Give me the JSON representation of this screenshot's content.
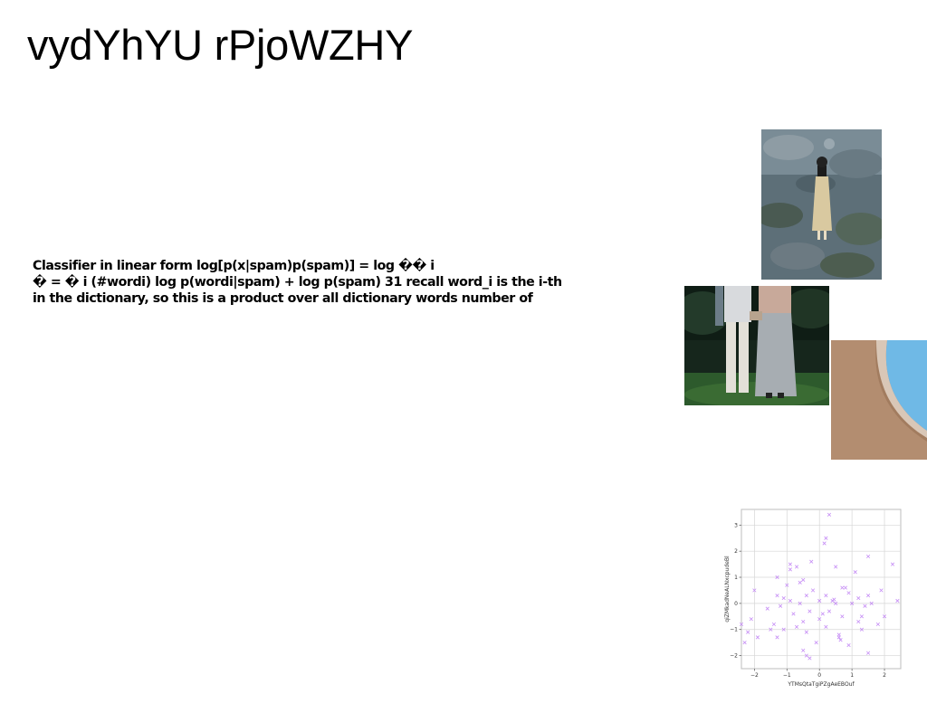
{
  "page": {
    "title": "vydYhYU rPjoWZHY",
    "body_lines": [
      "Classifier in linear form log[p(x|spam)p(spam)] = log �� i",
      "� = � i (#wordi) log p(wordi|spam) + log p(spam) 31 recall word_i is the i-th",
      "in the dictionary, so this is a product over all dictionary words number of"
    ]
  },
  "images": [
    {
      "name": "figure-in-dress-on-hillside-photo"
    },
    {
      "name": "two-people-holding-hands-photo"
    },
    {
      "name": "curved-wall-and-sky-photo"
    }
  ],
  "chart_data": {
    "type": "scatter",
    "xlabel": "YTMsQtaTgiPZgAeEBOuf",
    "ylabel": "qiZMkadNeALNxcpudeBl",
    "xlim": [
      -2.4,
      2.5
    ],
    "ylim": [
      -2.5,
      3.6
    ],
    "xticks": [
      -2,
      -1,
      0,
      1,
      2
    ],
    "yticks": [
      -2,
      -1,
      0,
      1,
      2,
      3
    ],
    "xtick_labels": [
      "−2",
      "−1",
      "0",
      "1",
      "2"
    ],
    "ytick_labels": [
      "−2",
      "−1",
      "0",
      "1",
      "2",
      "3"
    ],
    "grid": true,
    "marker": "x",
    "color": "#c58cf5",
    "points": [
      [
        0.3,
        3.4
      ],
      [
        0.2,
        2.5
      ],
      [
        0.15,
        2.3
      ],
      [
        -0.9,
        1.5
      ],
      [
        -0.25,
        1.6
      ],
      [
        1.5,
        1.8
      ],
      [
        2.25,
        1.5
      ],
      [
        1.1,
        1.2
      ],
      [
        0.5,
        1.4
      ],
      [
        -0.9,
        1.3
      ],
      [
        -1.3,
        1.0
      ],
      [
        -0.5,
        0.9
      ],
      [
        -0.6,
        0.8
      ],
      [
        -1.0,
        0.7
      ],
      [
        0.7,
        0.6
      ],
      [
        0.8,
        0.6
      ],
      [
        -2.0,
        0.5
      ],
      [
        -0.2,
        0.5
      ],
      [
        -1.3,
        0.3
      ],
      [
        1.9,
        0.5
      ],
      [
        0.9,
        0.4
      ],
      [
        -0.4,
        0.3
      ],
      [
        0.2,
        0.3
      ],
      [
        -1.1,
        0.2
      ],
      [
        1.2,
        0.2
      ],
      [
        1.5,
        0.3
      ],
      [
        -0.9,
        0.1
      ],
      [
        0.0,
        0.1
      ],
      [
        0.4,
        0.1
      ],
      [
        2.4,
        0.1
      ],
      [
        -0.6,
        0.0
      ],
      [
        -1.2,
        -0.1
      ],
      [
        0.5,
        0.0
      ],
      [
        1.0,
        0.0
      ],
      [
        1.4,
        -0.1
      ],
      [
        -1.6,
        -0.2
      ],
      [
        -0.3,
        -0.3
      ],
      [
        0.3,
        -0.3
      ],
      [
        -0.8,
        -0.4
      ],
      [
        0.7,
        -0.5
      ],
      [
        1.3,
        -0.5
      ],
      [
        -2.1,
        -0.6
      ],
      [
        2.0,
        -0.5
      ],
      [
        -0.5,
        -0.7
      ],
      [
        0.0,
        -0.6
      ],
      [
        1.2,
        -0.7
      ],
      [
        -1.4,
        -0.8
      ],
      [
        -2.4,
        -0.8
      ],
      [
        1.8,
        -0.8
      ],
      [
        -0.7,
        -0.9
      ],
      [
        0.2,
        -0.9
      ],
      [
        -1.1,
        -1.0
      ],
      [
        1.3,
        -1.0
      ],
      [
        -1.5,
        -1.0
      ],
      [
        -0.4,
        -1.1
      ],
      [
        0.6,
        -1.2
      ],
      [
        -2.2,
        -1.1
      ],
      [
        0.65,
        -1.4
      ],
      [
        -1.9,
        -1.3
      ],
      [
        -0.1,
        -1.5
      ],
      [
        -2.3,
        -1.5
      ],
      [
        -1.3,
        -1.3
      ],
      [
        0.9,
        -1.6
      ],
      [
        1.5,
        -1.9
      ],
      [
        -0.5,
        -1.8
      ],
      [
        -0.4,
        -2.0
      ],
      [
        -0.3,
        -2.1
      ],
      [
        0.6,
        -1.3
      ],
      [
        0.45,
        0.15
      ],
      [
        0.1,
        -0.4
      ],
      [
        -0.7,
        1.4
      ],
      [
        1.6,
        0.0
      ]
    ]
  }
}
